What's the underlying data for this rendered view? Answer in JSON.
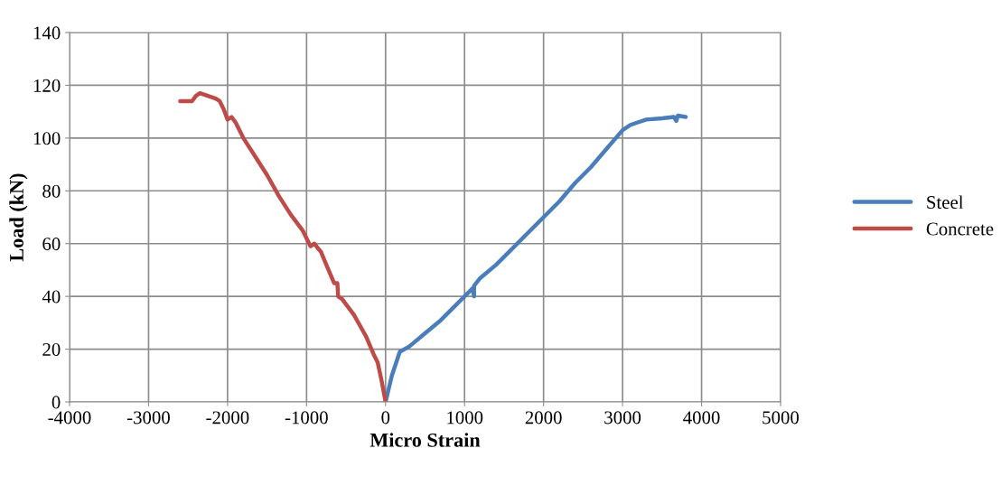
{
  "chart_data": {
    "type": "line",
    "xlabel": "Micro Strain",
    "ylabel": "Load (kN)",
    "xlim": [
      -4000,
      5000
    ],
    "xticks": [
      -4000,
      -3000,
      -2000,
      -1000,
      0,
      1000,
      2000,
      3000,
      4000,
      5000
    ],
    "ylim": [
      0,
      140
    ],
    "yticks": [
      0,
      20,
      40,
      60,
      80,
      100,
      120,
      140
    ],
    "grid": true,
    "legend": "right",
    "marker": "none",
    "line_style": "solid",
    "series": [
      {
        "name": "Steel",
        "color": "#4a7ebb",
        "x": [
          0,
          80,
          180,
          300,
          500,
          700,
          900,
          1100,
          1120,
          1120,
          1200,
          1400,
          1600,
          1800,
          2000,
          2200,
          2400,
          2600,
          2800,
          3000,
          3100,
          3300,
          3500,
          3650,
          3680,
          3700,
          3800
        ],
        "values": [
          0,
          10,
          19,
          21,
          26,
          31,
          37,
          43,
          40,
          44,
          47,
          52,
          58,
          64,
          70,
          76,
          83,
          89,
          96,
          103,
          105,
          107,
          107.5,
          108,
          106.5,
          108.5,
          108
        ]
      },
      {
        "name": "Concrete",
        "color": "#be4b48",
        "x": [
          0,
          -50,
          -100,
          -150,
          -250,
          -400,
          -550,
          -600,
          -610,
          -650,
          -750,
          -820,
          -850,
          -900,
          -950,
          -1050,
          -1200,
          -1350,
          -1500,
          -1650,
          -1800,
          -1900,
          -1950,
          -2000,
          -2050,
          -2100,
          -2150,
          -2250,
          -2350,
          -2400,
          -2450,
          -2600
        ],
        "values": [
          0,
          8,
          15,
          18,
          25,
          33,
          39,
          40,
          45,
          45,
          52,
          57,
          58,
          60,
          59,
          65,
          71,
          78,
          86,
          93,
          100,
          106,
          108,
          107,
          111,
          114,
          115,
          116,
          117,
          116,
          114,
          114
        ]
      }
    ]
  }
}
